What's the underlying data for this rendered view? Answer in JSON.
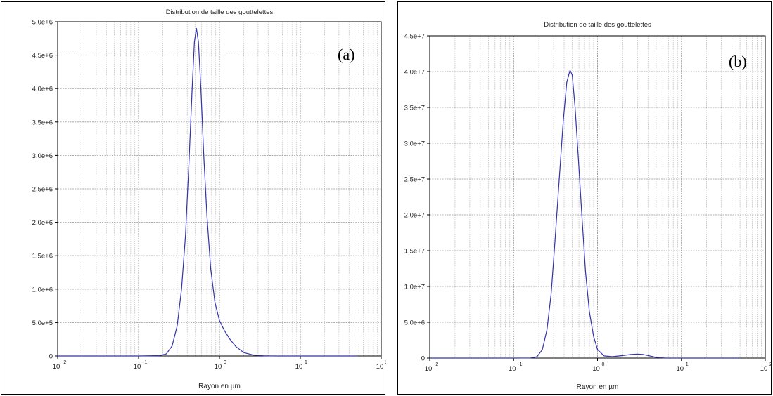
{
  "chart_data": [
    {
      "type": "line",
      "panel_label": "(a)",
      "title": "Distribution de taille des gouttelettes",
      "xlabel": "Rayon en µm",
      "ylabel": "",
      "xscale": "log",
      "xlim": [
        0.01,
        100
      ],
      "ylim": [
        0,
        5000000
      ],
      "grid": true,
      "xticks": [
        {
          "base": "10",
          "exp": "-2"
        },
        {
          "base": "10",
          "exp": "-1"
        },
        {
          "base": "10",
          "exp": "0"
        },
        {
          "base": "10",
          "exp": "1"
        },
        {
          "base": "10",
          "exp": "2"
        }
      ],
      "yticks": [
        "0",
        "5.0e+5",
        "1.0e+6",
        "1.5e+6",
        "2.0e+6",
        "2.5e+6",
        "3.0e+6",
        "3.5e+6",
        "4.0e+6",
        "4.5e+6",
        "5.0e+6"
      ],
      "line_color": "#3333aa",
      "series": [
        {
          "x": [
            0.01,
            0.1,
            0.18,
            0.22,
            0.26,
            0.3,
            0.34,
            0.38,
            0.42,
            0.46,
            0.49,
            0.52,
            0.55,
            0.59,
            0.64,
            0.7,
            0.78,
            0.88,
            1.0,
            1.15,
            1.35,
            1.6,
            2.0,
            2.6,
            3.5,
            5.0,
            10,
            50
          ],
          "y": [
            0,
            0,
            5000,
            30000,
            150000,
            450000,
            1000000,
            1800000,
            2900000,
            4000000,
            4700000,
            4900000,
            4700000,
            4000000,
            3000000,
            2100000,
            1300000,
            800000,
            530000,
            380000,
            250000,
            140000,
            50000,
            15000,
            3000,
            0,
            0,
            0
          ]
        }
      ]
    },
    {
      "type": "line",
      "panel_label": "(b)",
      "title": "Distribution de taille des gouttelettes",
      "xlabel": "Rayon en µm",
      "ylabel": "",
      "xscale": "log",
      "xlim": [
        0.01,
        100
      ],
      "ylim": [
        0,
        45000000
      ],
      "grid": true,
      "xticks": [
        {
          "base": "10",
          "exp": "-2"
        },
        {
          "base": "10",
          "exp": "-1"
        },
        {
          "base": "10",
          "exp": "0"
        },
        {
          "base": "10",
          "exp": "1"
        },
        {
          "base": "10",
          "exp": "2"
        }
      ],
      "yticks": [
        "0",
        "5.0e+6",
        "1.0e+7",
        "1.5e+7",
        "2.0e+7",
        "2.5e+7",
        "3.0e+7",
        "3.5e+7",
        "4.0e+7",
        "4.5e+7"
      ],
      "line_color": "#3333aa",
      "series": [
        {
          "x": [
            0.01,
            0.1,
            0.16,
            0.19,
            0.22,
            0.25,
            0.28,
            0.31,
            0.35,
            0.39,
            0.43,
            0.47,
            0.5,
            0.54,
            0.59,
            0.65,
            0.72,
            0.8,
            0.9,
            1.0,
            1.2,
            1.5,
            2.0,
            2.5,
            3.0,
            3.5,
            4.2,
            5.0,
            6.5,
            10,
            50
          ],
          "y": [
            0,
            0,
            20000,
            200000,
            1200000,
            4000000,
            9000000,
            16000000,
            25000000,
            33000000,
            38500000,
            40200000,
            39500000,
            35000000,
            28000000,
            20000000,
            12000000,
            6500000,
            3000000,
            1200000,
            300000,
            200000,
            350000,
            500000,
            550000,
            500000,
            300000,
            100000,
            0,
            0,
            0
          ]
        }
      ]
    }
  ]
}
